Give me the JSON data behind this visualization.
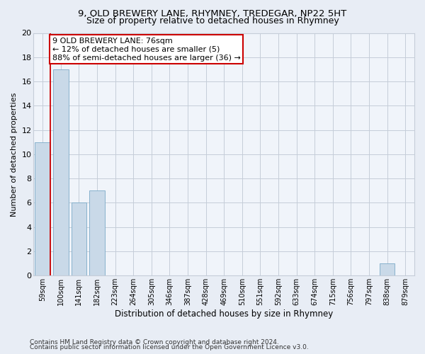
{
  "title1": "9, OLD BREWERY LANE, RHYMNEY, TREDEGAR, NP22 5HT",
  "title2": "Size of property relative to detached houses in Rhymney",
  "xlabel": "Distribution of detached houses by size in Rhymney",
  "ylabel": "Number of detached properties",
  "categories": [
    "59sqm",
    "100sqm",
    "141sqm",
    "182sqm",
    "223sqm",
    "264sqm",
    "305sqm",
    "346sqm",
    "387sqm",
    "428sqm",
    "469sqm",
    "510sqm",
    "551sqm",
    "592sqm",
    "633sqm",
    "674sqm",
    "715sqm",
    "756sqm",
    "797sqm",
    "838sqm",
    "879sqm"
  ],
  "values": [
    11,
    17,
    6,
    7,
    0,
    0,
    0,
    0,
    0,
    0,
    0,
    0,
    0,
    0,
    0,
    0,
    0,
    0,
    0,
    1,
    0
  ],
  "bar_color": "#c9d9e8",
  "bar_edge_color": "#7aaac8",
  "highlight_color": "#cc0000",
  "annotation_text": "9 OLD BREWERY LANE: 76sqm\n← 12% of detached houses are smaller (5)\n88% of semi-detached houses are larger (36) →",
  "annotation_box_color": "#ffffff",
  "annotation_box_edge": "#cc0000",
  "ylim": [
    0,
    20
  ],
  "yticks": [
    0,
    2,
    4,
    6,
    8,
    10,
    12,
    14,
    16,
    18,
    20
  ],
  "footer1": "Contains HM Land Registry data © Crown copyright and database right 2024.",
  "footer2": "Contains public sector information licensed under the Open Government Licence v3.0.",
  "bg_color": "#e8edf5",
  "plot_bg_color": "#f0f4fa",
  "grid_color": "#c5cdd8",
  "title1_fontsize": 9.5,
  "title2_fontsize": 9,
  "axis_label_fontsize": 8,
  "tick_fontsize": 7,
  "annotation_fontsize": 8,
  "footer_fontsize": 6.5
}
